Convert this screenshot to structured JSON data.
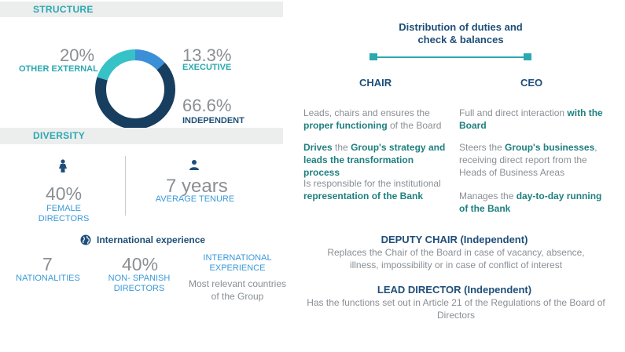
{
  "structure": {
    "section_title": "STRUCTURE",
    "donut": [
      {
        "label": "OTHER EXTERNAL",
        "value": "20%",
        "fraction": 0.2,
        "color": "#36c2c6"
      },
      {
        "label": "EXECUTIVE",
        "value": "13.3%",
        "fraction": 0.133,
        "color": "#3b8fd6"
      },
      {
        "label": "INDEPENDENT",
        "value": "66.6%",
        "fraction": 0.666,
        "color": "#173e5f"
      }
    ]
  },
  "diversity": {
    "section_title": "DIVERSITY",
    "female": {
      "value": "40%",
      "label_line1": "FEMALE",
      "label_line2": "DIRECTORS"
    },
    "tenure": {
      "value": "7 years",
      "label": "AVERAGE TENURE"
    },
    "intl_title": "International experience",
    "nationalities": {
      "value": "7",
      "label": "NATIONALITIES"
    },
    "non_spanish": {
      "value": "40%",
      "label_line1": "NON- SPANISH",
      "label_line2": "DIRECTORS"
    },
    "intl_exp": {
      "label_line1": "INTERNATIONAL",
      "label_line2": "EXPERIENCE",
      "desc_line1": "Most relevant countries",
      "desc_line2": "of the Group"
    }
  },
  "duties": {
    "title_line1": "Distribution of duties  and",
    "title_line2": "check & balances",
    "chair": {
      "heading": "CHAIR",
      "p1_a": "Leads, chairs and ensures the ",
      "p1_b": "proper functioning",
      "p1_c": " of the Board",
      "p2_a": "Drives",
      "p2_b": " the ",
      "p2_c": "Group's strategy and leads the transformation process",
      "p3_a": "Is responsible for the institutional ",
      "p3_b": "representation of the Bank"
    },
    "ceo": {
      "heading": "CEO",
      "p1_a": "Full and direct interaction ",
      "p1_b": "with the Board",
      "p2_a": "Steers the ",
      "p2_b": "Group's businesses",
      "p2_c": ", receiving direct report from the Heads of Business Areas",
      "p3_a": "Manages the ",
      "p3_b": "day-to-day running of the Bank"
    },
    "deputy": {
      "heading": "DEPUTY CHAIR (Independent)",
      "desc": "Replaces the Chair of the Board in case of vacancy, absence, illness, impossibility or in case of conflict of interest"
    },
    "lead": {
      "heading": "LEAD DIRECTOR (Independent)",
      "desc": "Has the functions set out in Article 21 of the Regulations of the Board of Directors"
    }
  }
}
